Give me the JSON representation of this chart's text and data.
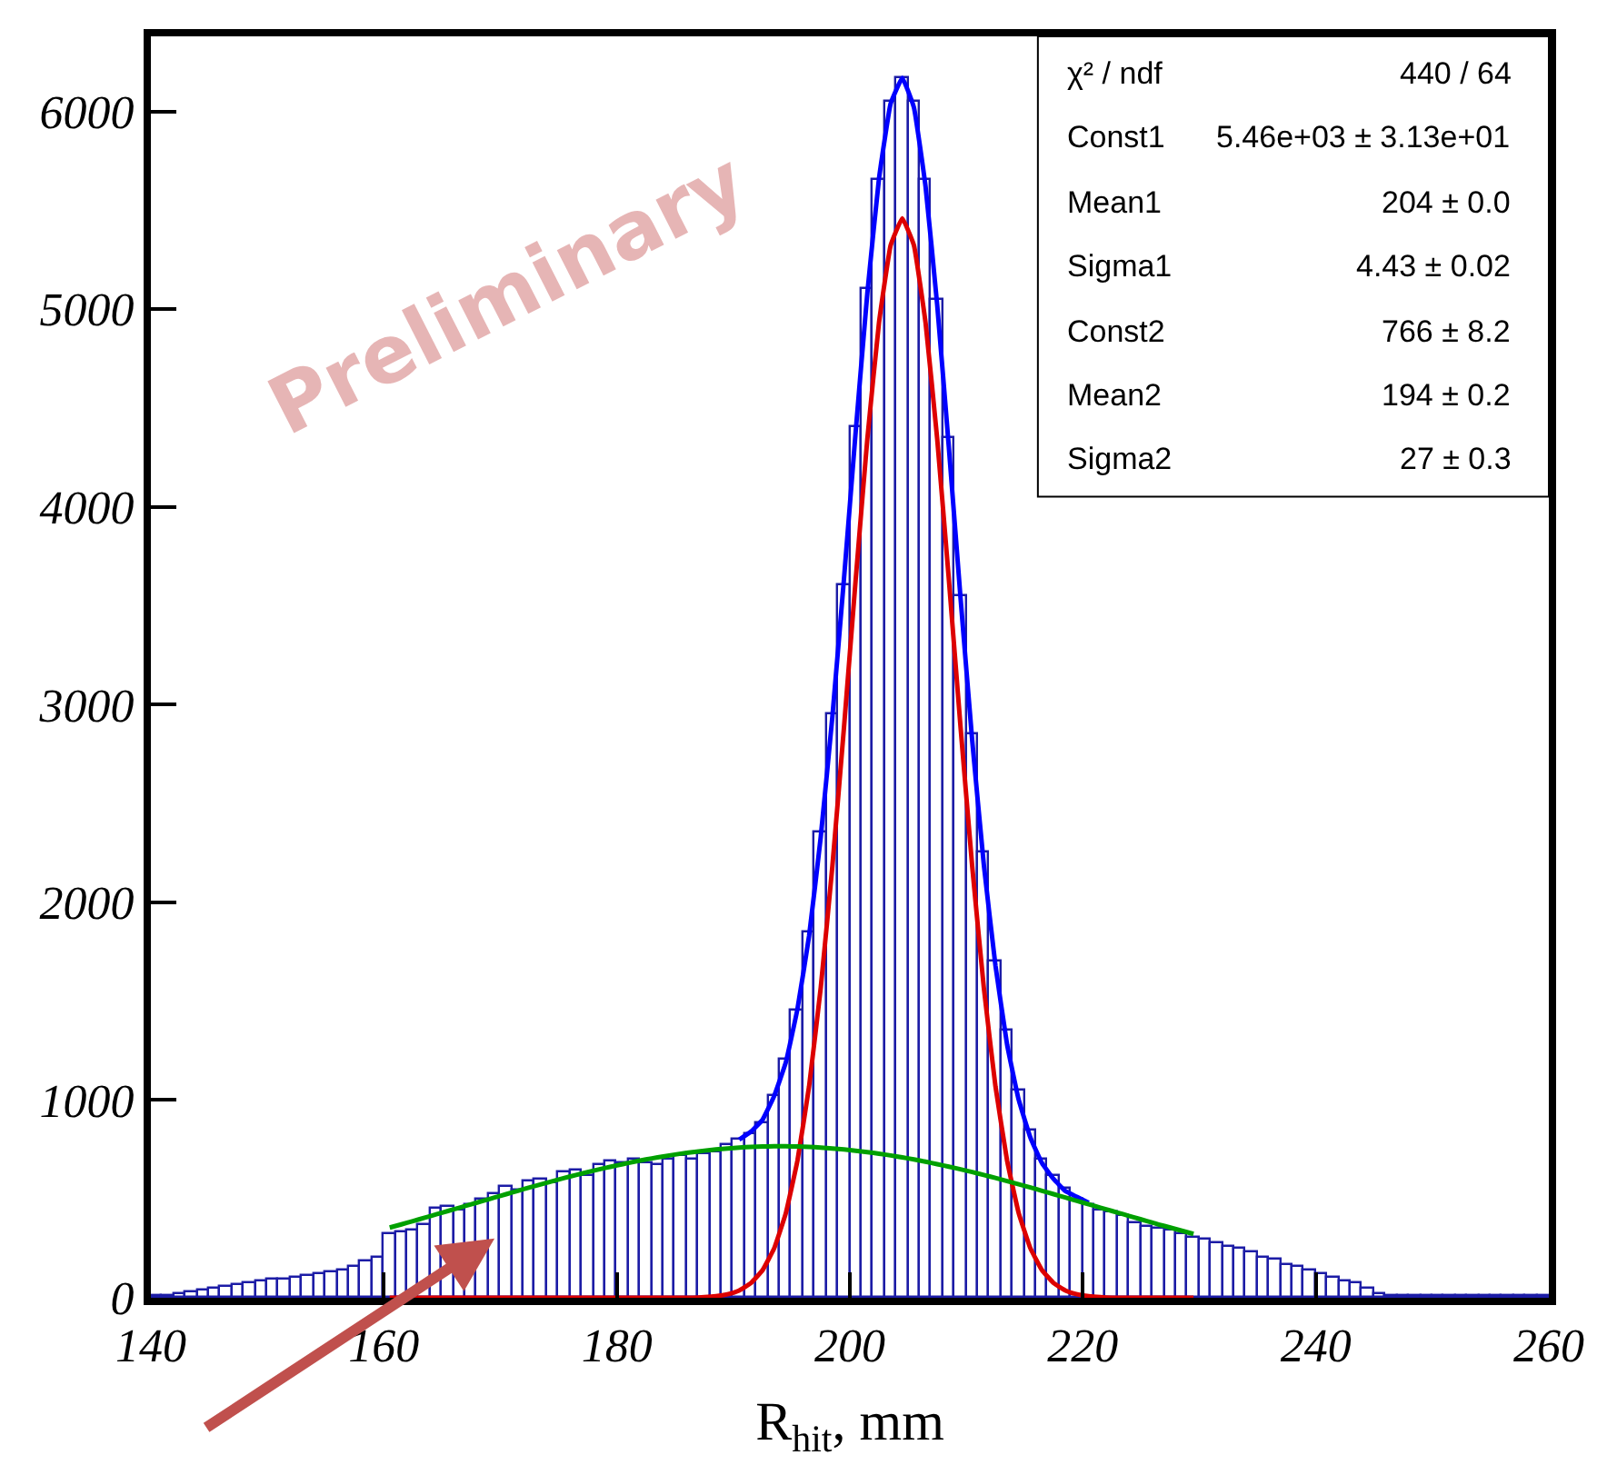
{
  "chart_data": {
    "type": "histogram",
    "xlabel": "R$_{hit}$, mm",
    "bins": [
      140,
      141,
      142,
      143,
      144,
      145,
      146,
      147,
      148,
      149,
      150,
      151,
      152,
      153,
      154,
      155,
      156,
      157,
      158,
      159,
      160,
      161,
      162,
      163,
      164,
      165,
      166,
      167,
      168,
      169,
      170,
      171,
      172,
      173,
      174,
      175,
      176,
      177,
      178,
      179,
      180,
      181,
      182,
      183,
      184,
      185,
      186,
      187,
      188,
      189,
      190,
      191,
      192,
      193,
      194,
      195,
      196,
      197,
      198,
      199,
      200,
      201,
      202,
      203,
      204,
      205,
      206,
      207,
      208,
      209,
      210,
      211,
      212,
      213,
      214,
      215,
      216,
      217,
      218,
      219,
      220,
      221,
      222,
      223,
      224,
      225,
      226,
      227,
      228,
      229,
      230,
      231,
      232,
      233,
      234,
      235,
      236,
      237,
      238,
      239,
      240,
      241,
      242,
      243,
      244,
      245,
      246,
      247,
      248,
      249,
      250,
      251,
      252,
      253,
      254,
      255,
      256,
      257,
      258,
      259,
      260
    ],
    "values": [
      5,
      10,
      15,
      25,
      35,
      45,
      55,
      60,
      70,
      80,
      90,
      95,
      100,
      110,
      120,
      130,
      140,
      160,
      180,
      200,
      320,
      330,
      340,
      370,
      450,
      460,
      440,
      470,
      500,
      520,
      560,
      540,
      590,
      600,
      580,
      630,
      640,
      620,
      670,
      690,
      680,
      700,
      680,
      670,
      700,
      720,
      700,
      730,
      740,
      770,
      800,
      830,
      880,
      1020,
      1200,
      1450,
      1850,
      2350,
      2950,
      3600,
      4400,
      5100,
      5650,
      6050,
      6170,
      6050,
      5650,
      5050,
      4350,
      3550,
      2850,
      2250,
      1700,
      1350,
      1050,
      850,
      700,
      620,
      550,
      500,
      470,
      440,
      430,
      410,
      380,
      360,
      350,
      340,
      320,
      300,
      290,
      280,
      260,
      250,
      230,
      200,
      190,
      170,
      160,
      140,
      120,
      100,
      80,
      70,
      50,
      20,
      10,
      5,
      5,
      5,
      5,
      5,
      5,
      5,
      5,
      5,
      5,
      5,
      5,
      5
    ],
    "color": "#1c1ca6",
    "series": [
      {
        "type": "line",
        "color": "#0000ff",
        "x": [
          190.5,
          191.5,
          192.5,
          193.5,
          194.5,
          195.5,
          196.5,
          197.5,
          198.5,
          199.5,
          200.5,
          201.5,
          202.5,
          203.5,
          204.5,
          205.5,
          206.5,
          207.5,
          208.5,
          209.5,
          210.5,
          211.5,
          212.5,
          213.5,
          214.5,
          215.5,
          216.5,
          217.5,
          218.5,
          219.5,
          220.5
        ],
        "values": [
          800,
          840,
          900,
          1020,
          1190,
          1460,
          1830,
          2330,
          2940,
          3640,
          4380,
          5080,
          5660,
          6040,
          6170,
          6020,
          5620,
          5020,
          4300,
          3540,
          2820,
          2190,
          1680,
          1280,
          1000,
          810,
          680,
          600,
          540,
          510,
          480
        ]
      },
      {
        "type": "line",
        "color": "#dd0000",
        "x": [
          160.5,
          161.5,
          162.5,
          163.5,
          164.5,
          165.5,
          166.5,
          167.5,
          168.5,
          169.5,
          170.5,
          171.5,
          172.5,
          173.5,
          174.5,
          175.5,
          176.5,
          177.5,
          178.5,
          179.5,
          180.5,
          181.5,
          182.5,
          183.5,
          184.5,
          185.5,
          186.5,
          187.5,
          188.5,
          189.5,
          190.5,
          191.5,
          192.5,
          193.5,
          194.5,
          195.5,
          196.5,
          197.5,
          198.5,
          199.5,
          200.5,
          201.5,
          202.5,
          203.5,
          204.5,
          205.5,
          206.5,
          207.5,
          208.5,
          209.5,
          210.5,
          211.5,
          212.5,
          213.5,
          214.5,
          215.5,
          216.5,
          217.5,
          218.5,
          219.5,
          220.5,
          221.5,
          222.5,
          223.5,
          224.5,
          225.5,
          226.5,
          227.5,
          228.5,
          229.5
        ],
        "values": [
          0,
          0,
          0,
          0,
          0,
          0,
          0,
          0,
          0,
          0,
          0,
          0,
          0,
          0,
          0,
          0,
          0,
          0,
          0,
          0,
          0,
          0,
          0,
          0,
          0,
          0,
          0,
          3,
          8,
          18,
          37,
          74,
          139,
          250,
          427,
          693,
          1069,
          1568,
          2183,
          2888,
          3632,
          4343,
          4931,
          5323,
          5460,
          5323,
          4931,
          4343,
          3632,
          2888,
          2183,
          1568,
          1069,
          693,
          427,
          250,
          139,
          74,
          37,
          18,
          8,
          3,
          0,
          0,
          0,
          0,
          0,
          0,
          0,
          0
        ]
      },
      {
        "type": "line",
        "color": "#00a000",
        "x": [
          160.5,
          161.5,
          162.5,
          163.5,
          164.5,
          165.5,
          166.5,
          167.5,
          168.5,
          169.5,
          170.5,
          171.5,
          172.5,
          173.5,
          174.5,
          175.5,
          176.5,
          177.5,
          178.5,
          179.5,
          180.5,
          181.5,
          182.5,
          183.5,
          184.5,
          185.5,
          186.5,
          187.5,
          188.5,
          189.5,
          190.5,
          191.5,
          192.5,
          193.5,
          194.5,
          195.5,
          196.5,
          197.5,
          198.5,
          199.5,
          200.5,
          201.5,
          202.5,
          203.5,
          204.5,
          205.5,
          206.5,
          207.5,
          208.5,
          209.5,
          210.5,
          211.5,
          212.5,
          213.5,
          214.5,
          215.5,
          216.5,
          217.5,
          218.5,
          219.5,
          220.5,
          221.5,
          222.5,
          223.5,
          224.5,
          225.5,
          226.5,
          227.5,
          228.5,
          229.5
        ],
        "values": [
          355,
          371,
          388,
          405,
          422,
          439,
          456,
          473,
          490,
          507,
          524,
          541,
          558,
          574,
          590,
          606,
          621,
          636,
          650,
          663,
          676,
          688,
          700,
          710,
          720,
          729,
          737,
          744,
          750,
          755,
          760,
          763,
          765,
          766,
          766,
          765,
          763,
          760,
          755,
          750,
          744,
          737,
          729,
          720,
          710,
          700,
          688,
          676,
          663,
          650,
          636,
          621,
          606,
          590,
          574,
          558,
          541,
          524,
          507,
          490,
          473,
          456,
          439,
          422,
          405,
          388,
          371,
          355,
          339,
          323
        ]
      }
    ],
    "xlim": [
      140,
      260
    ],
    "ylim": [
      0,
      6380
    ],
    "xticks": [
      140,
      160,
      180,
      200,
      220,
      240,
      260
    ],
    "yticks": [
      0,
      1000,
      2000,
      3000,
      4000,
      5000,
      6000
    ],
    "annotations": [
      "χ² / ndf",
      "440 / 64",
      "Const1",
      "5.46e+03 ± 3.13e+01",
      "Mean1",
      "204 ± 0.0",
      "Sigma1",
      "4.43 ± 0.02",
      "Const2",
      "766 ± 8.2",
      "Mean2",
      "194 ± 0.2",
      "Sigma2",
      "27 ± 0.3",
      "Preliminary"
    ]
  }
}
